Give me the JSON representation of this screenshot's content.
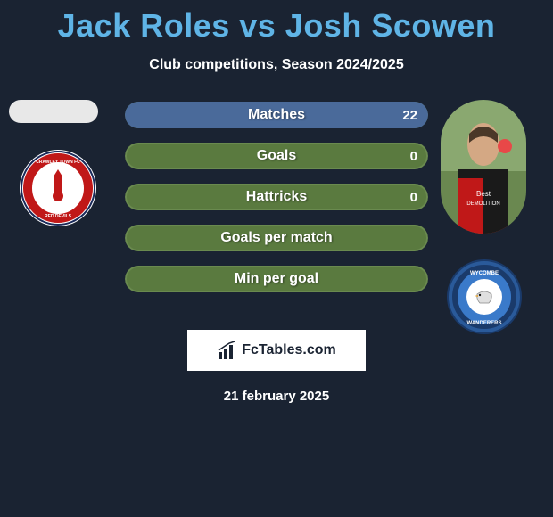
{
  "title": "Jack Roles vs Josh Scowen",
  "subtitle": "Club competitions, Season 2024/2025",
  "colors": {
    "background": "#1a2332",
    "title": "#5fb4e6",
    "text": "#ffffff",
    "bar_neutral": "#5a7a3f",
    "bar_border": "#6a8a4f",
    "bar_right_accent": "#4a6a9a",
    "logo_bg": "#ffffff"
  },
  "player_left": {
    "name": "Jack Roles",
    "club": "Crawley Town FC"
  },
  "player_right": {
    "name": "Josh Scowen",
    "club": "Wycombe Wanderers"
  },
  "stats": [
    {
      "label": "Matches",
      "left_value": "",
      "right_value": "22",
      "left_pct": 0,
      "right_pct": 100,
      "bg": "#5a7a3f",
      "border": "#6a8a4f",
      "right_color": "#4a6a9a"
    },
    {
      "label": "Goals",
      "left_value": "",
      "right_value": "0",
      "left_pct": 0,
      "right_pct": 0,
      "bg": "#5a7a3f",
      "border": "#6a8a4f"
    },
    {
      "label": "Hattricks",
      "left_value": "",
      "right_value": "0",
      "left_pct": 0,
      "right_pct": 0,
      "bg": "#5a7a3f",
      "border": "#6a8a4f"
    },
    {
      "label": "Goals per match",
      "left_value": "",
      "right_value": "",
      "left_pct": 0,
      "right_pct": 0,
      "bg": "#5a7a3f",
      "border": "#6a8a4f"
    },
    {
      "label": "Min per goal",
      "left_value": "",
      "right_value": "",
      "left_pct": 0,
      "right_pct": 0,
      "bg": "#5a7a3f",
      "border": "#6a8a4f"
    }
  ],
  "footer": {
    "logo_text": "FcTables.com",
    "date": "21 february 2025"
  }
}
